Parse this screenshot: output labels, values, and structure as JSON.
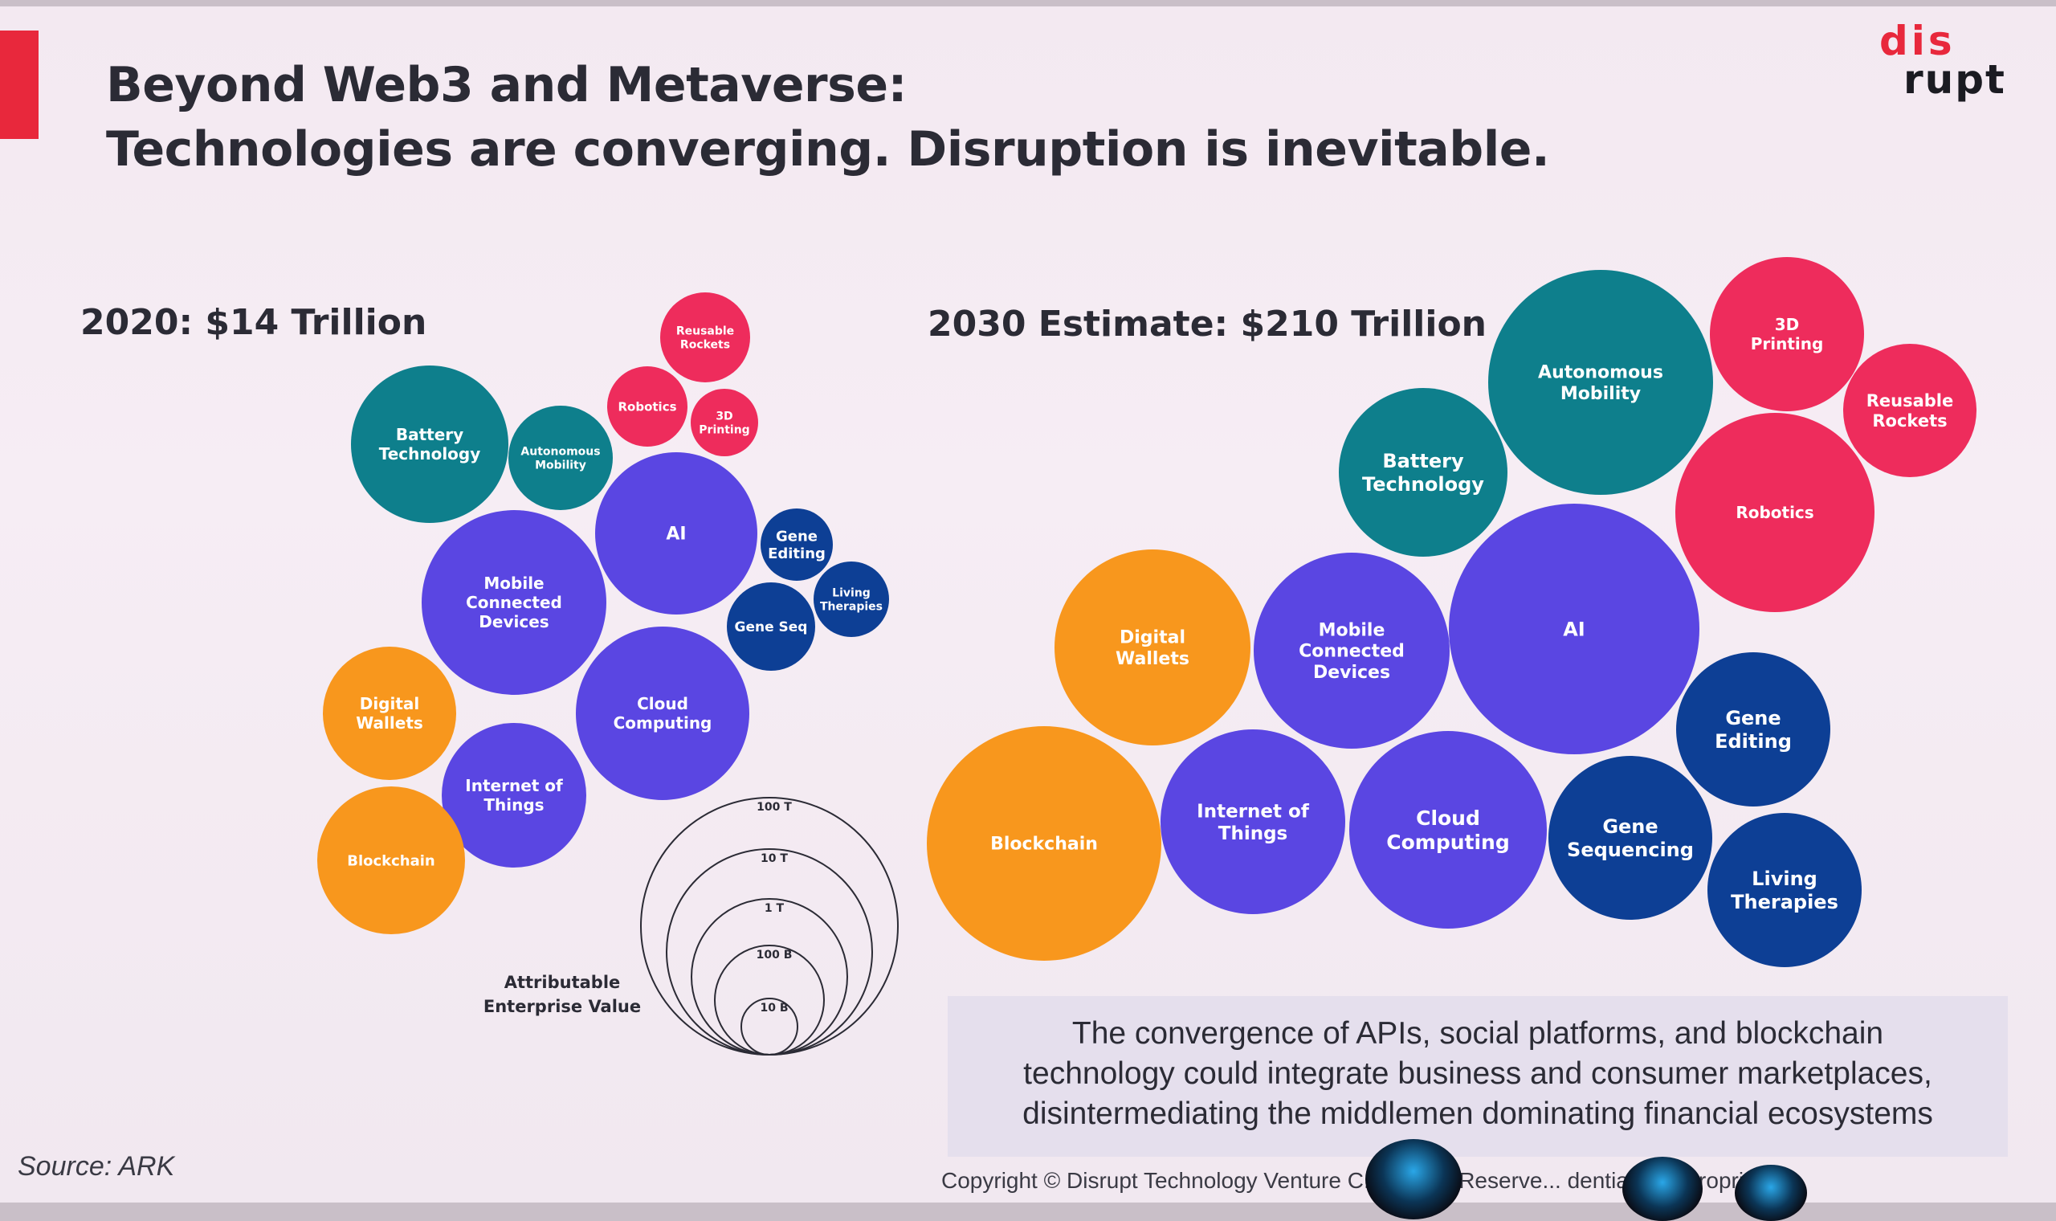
{
  "slide": {
    "title_line1": "Beyond Web3 and Metaverse:",
    "title_line2": "Technologies are converging. Disruption is inevitable.",
    "logo_row1": "dis",
    "logo_row2": "rupt"
  },
  "chart_2020": {
    "label": "2020: $14 Trillion",
    "bubbles": [
      {
        "id": "battery-technology",
        "lines": [
          "Battery",
          "Technology"
        ],
        "color": "#0e7f8c"
      },
      {
        "id": "autonomous-mobility",
        "lines": [
          "Autonomous",
          "Mobility"
        ],
        "color": "#0e7f8c"
      },
      {
        "id": "reusable-rockets",
        "lines": [
          "Reusable",
          "Rockets"
        ],
        "color": "#ee2c5c"
      },
      {
        "id": "robotics",
        "lines": [
          "Robotics"
        ],
        "color": "#ee2c5c"
      },
      {
        "id": "3d-printing",
        "lines": [
          "3D",
          "Printing"
        ],
        "color": "#ee2c5c"
      },
      {
        "id": "ai",
        "lines": [
          "AI"
        ],
        "color": "#5a46e2"
      },
      {
        "id": "mobile-connected-devices",
        "lines": [
          "Mobile",
          "Connected",
          "Devices"
        ],
        "color": "#5a46e2"
      },
      {
        "id": "gene-editing",
        "lines": [
          "Gene",
          "Editing"
        ],
        "color": "#0d3f95"
      },
      {
        "id": "living-therapies",
        "lines": [
          "Living",
          "Therapies"
        ],
        "color": "#0d3f95"
      },
      {
        "id": "gene-seq",
        "lines": [
          "Gene Seq"
        ],
        "color": "#0d3f95"
      },
      {
        "id": "cloud-computing",
        "lines": [
          "Cloud",
          "Computing"
        ],
        "color": "#5a46e2"
      },
      {
        "id": "digital-wallets",
        "lines": [
          "Digital",
          "Wallets"
        ],
        "color": "#f8971d"
      },
      {
        "id": "internet-of-things",
        "lines": [
          "Internet of",
          "Things"
        ],
        "color": "#5a46e2"
      },
      {
        "id": "blockchain",
        "lines": [
          "Blockchain"
        ],
        "color": "#f8971d"
      }
    ]
  },
  "legend": {
    "title_line1": "Attributable",
    "title_line2": "Enterprise Value",
    "rings": [
      "100 T",
      "10 T",
      "1 T",
      "100 B",
      "10 B"
    ]
  },
  "chart_2030": {
    "label": "2030 Estimate: $210 Trillion",
    "bubbles": [
      {
        "id": "autonomous-mobility",
        "lines": [
          "Autonomous",
          "Mobility"
        ],
        "color": "#0e7f8c"
      },
      {
        "id": "3d-printing",
        "lines": [
          "3D",
          "Printing"
        ],
        "color": "#ee2c5c"
      },
      {
        "id": "reusable-rockets",
        "lines": [
          "Reusable",
          "Rockets"
        ],
        "color": "#ee2c5c"
      },
      {
        "id": "battery-technology",
        "lines": [
          "Battery",
          "Technology"
        ],
        "color": "#0e7f8c"
      },
      {
        "id": "robotics",
        "lines": [
          "Robotics"
        ],
        "color": "#ee2c5c"
      },
      {
        "id": "ai",
        "lines": [
          "AI"
        ],
        "color": "#5a46e2"
      },
      {
        "id": "digital-wallets",
        "lines": [
          "Digital",
          "Wallets"
        ],
        "color": "#f8971d"
      },
      {
        "id": "mobile-connected-devices",
        "lines": [
          "Mobile",
          "Connected",
          "Devices"
        ],
        "color": "#5a46e2"
      },
      {
        "id": "gene-editing",
        "lines": [
          "Gene",
          "Editing"
        ],
        "color": "#0d3f95"
      },
      {
        "id": "blockchain",
        "lines": [
          "Blockchain"
        ],
        "color": "#f8971d"
      },
      {
        "id": "internet-of-things",
        "lines": [
          "Internet of",
          "Things"
        ],
        "color": "#5a46e2"
      },
      {
        "id": "cloud-computing",
        "lines": [
          "Cloud",
          "Computing"
        ],
        "color": "#5a46e2"
      },
      {
        "id": "gene-sequencing",
        "lines": [
          "Gene",
          "Sequencing"
        ],
        "color": "#0d3f95"
      },
      {
        "id": "living-therapies",
        "lines": [
          "Living",
          "Therapies"
        ],
        "color": "#0d3f95"
      }
    ]
  },
  "caption": {
    "line1": "The convergence of APIs, social platforms, and blockchain",
    "line2": "technology could integrate business and consumer marketplaces,",
    "line3": "disintermediating the middlemen dominating financial ecosystems"
  },
  "footer": {
    "source": "Source: ARK",
    "copyright": "Copyright © Disrupt Technology Venture C... Rights Reserve... dential and Proprietary"
  }
}
